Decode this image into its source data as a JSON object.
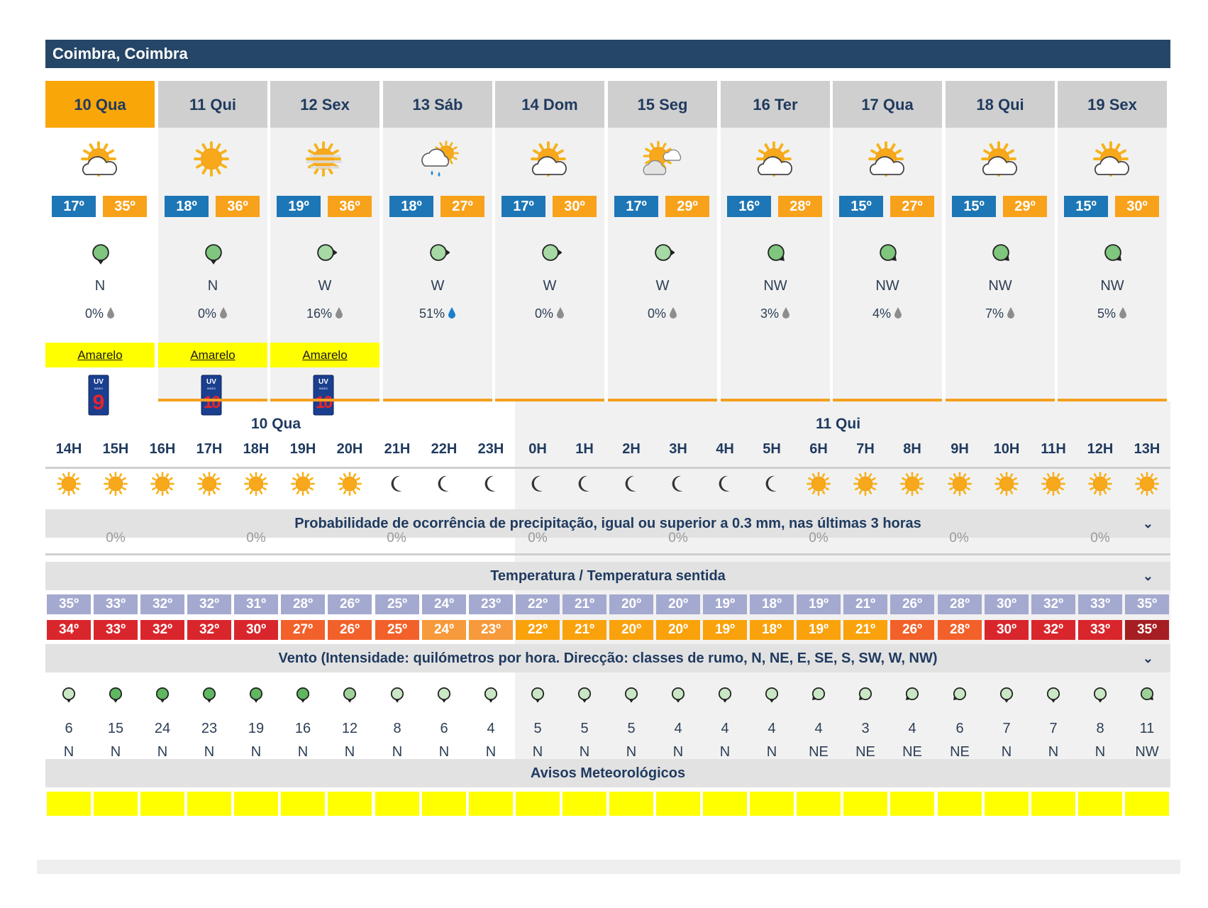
{
  "location": "Coimbra, Coimbra",
  "days": [
    {
      "label": "10 Qua",
      "icon": "sun-cloud-icon",
      "tmin": "17º",
      "tmax": "35º",
      "wind_icon": "wind-north-icon",
      "wind_dir": "N",
      "precip": "0%",
      "warning": "Amarelo",
      "uv": "9"
    },
    {
      "label": "11 Qui",
      "icon": "sun-icon",
      "tmin": "18º",
      "tmax": "36º",
      "wind_icon": "wind-north-icon",
      "wind_dir": "N",
      "precip": "0%",
      "warning": "Amarelo",
      "uv": "10"
    },
    {
      "label": "12 Sex",
      "icon": "sun-haze-icon",
      "tmin": "19º",
      "tmax": "36º",
      "wind_icon": "wind-west-icon",
      "wind_dir": "W",
      "precip": "16%",
      "warning": "Amarelo",
      "uv": "10"
    },
    {
      "label": "13 Sáb",
      "icon": "rain-sun-icon",
      "tmin": "18º",
      "tmax": "27º",
      "wind_icon": "wind-west-icon",
      "wind_dir": "W",
      "precip": "51%",
      "warning": "",
      "uv": ""
    },
    {
      "label": "14 Dom",
      "icon": "sun-cloud-icon",
      "tmin": "17º",
      "tmax": "30º",
      "wind_icon": "wind-west-icon",
      "wind_dir": "W",
      "precip": "0%",
      "warning": "",
      "uv": ""
    },
    {
      "label": "15 Seg",
      "icon": "sun-clouds-icon",
      "tmin": "17º",
      "tmax": "29º",
      "wind_icon": "wind-west-icon",
      "wind_dir": "W",
      "precip": "0%",
      "warning": "",
      "uv": ""
    },
    {
      "label": "16 Ter",
      "icon": "sun-cloud-icon",
      "tmin": "16º",
      "tmax": "28º",
      "wind_icon": "wind-northwest-icon",
      "wind_dir": "NW",
      "precip": "3%",
      "warning": "",
      "uv": ""
    },
    {
      "label": "17 Qua",
      "icon": "sun-cloud-icon",
      "tmin": "15º",
      "tmax": "27º",
      "wind_icon": "wind-northwest-icon",
      "wind_dir": "NW",
      "precip": "4%",
      "warning": "",
      "uv": ""
    },
    {
      "label": "18 Qui",
      "icon": "sun-cloud-icon",
      "tmin": "15º",
      "tmax": "29º",
      "wind_icon": "wind-northwest-icon",
      "wind_dir": "NW",
      "precip": "7%",
      "warning": "",
      "uv": ""
    },
    {
      "label": "19 Sex",
      "icon": "sun-cloud-icon",
      "tmin": "15º",
      "tmax": "30º",
      "wind_icon": "wind-northwest-icon",
      "wind_dir": "NW",
      "precip": "5%",
      "warning": "",
      "uv": ""
    }
  ],
  "hourly": {
    "day1_label": "10 Qua",
    "day2_label": "11 Qui",
    "hours": [
      "14H",
      "15H",
      "16H",
      "17H",
      "18H",
      "19H",
      "20H",
      "21H",
      "22H",
      "23H",
      "0H",
      "1H",
      "2H",
      "3H",
      "4H",
      "5H",
      "6H",
      "7H",
      "8H",
      "9H",
      "10H",
      "11H",
      "12H",
      "13H"
    ],
    "icons": [
      "sun",
      "sun",
      "sun",
      "sun",
      "sun",
      "sun",
      "sun",
      "moon",
      "moon",
      "moon",
      "moon",
      "moon",
      "moon",
      "moon",
      "moon",
      "moon",
      "sun",
      "sun",
      "sun",
      "sun",
      "sun",
      "sun",
      "sun",
      "sun"
    ],
    "precip_title": "Probabilidade de ocorrência de precipitação, igual ou superior a 0.3 mm, nas últimas 3 horas",
    "precip_values": [
      "0%",
      "0%",
      "0%",
      "0%",
      "0%",
      "0%",
      "0%",
      "0%"
    ],
    "temp_title": "Temperatura / Temperatura sentida",
    "temps": [
      "35º",
      "33º",
      "32º",
      "32º",
      "31º",
      "28º",
      "26º",
      "25º",
      "24º",
      "23º",
      "22º",
      "21º",
      "20º",
      "20º",
      "19º",
      "18º",
      "19º",
      "21º",
      "26º",
      "28º",
      "30º",
      "32º",
      "33º",
      "35º"
    ],
    "feels": [
      "34º",
      "33º",
      "32º",
      "32º",
      "30º",
      "27º",
      "26º",
      "25º",
      "24º",
      "23º",
      "22º",
      "21º",
      "20º",
      "20º",
      "19º",
      "18º",
      "19º",
      "21º",
      "26º",
      "28º",
      "30º",
      "32º",
      "33º",
      "35º"
    ],
    "feels_colors": [
      "#d9262c",
      "#d9262c",
      "#d9262c",
      "#d9262c",
      "#d9262c",
      "#f2612a",
      "#f2612a",
      "#f2612a",
      "#f79a3b",
      "#f79a3b",
      "#f9a20c",
      "#f9a20c",
      "#f9a20c",
      "#f9a20c",
      "#f9a20c",
      "#f9a20c",
      "#f9a20c",
      "#f9a20c",
      "#f2612a",
      "#f2612a",
      "#d9262c",
      "#d9262c",
      "#d9262c",
      "#a51e22"
    ],
    "wind_title": "Vento (Intensidade: quilómetros por hora. Direcção: classes de rumo, N, NE, E, SE, S, SW, W, NW)",
    "wind_speed": [
      "6",
      "15",
      "24",
      "23",
      "19",
      "16",
      "12",
      "8",
      "6",
      "4",
      "5",
      "5",
      "5",
      "4",
      "4",
      "4",
      "4",
      "3",
      "4",
      "6",
      "7",
      "7",
      "8",
      "11"
    ],
    "wind_dir": [
      "N",
      "N",
      "N",
      "N",
      "N",
      "N",
      "N",
      "N",
      "N",
      "N",
      "N",
      "N",
      "N",
      "N",
      "N",
      "N",
      "NE",
      "NE",
      "NE",
      "NE",
      "N",
      "N",
      "N",
      "NW"
    ],
    "warnings_title": "Avisos Meteorológicos"
  }
}
